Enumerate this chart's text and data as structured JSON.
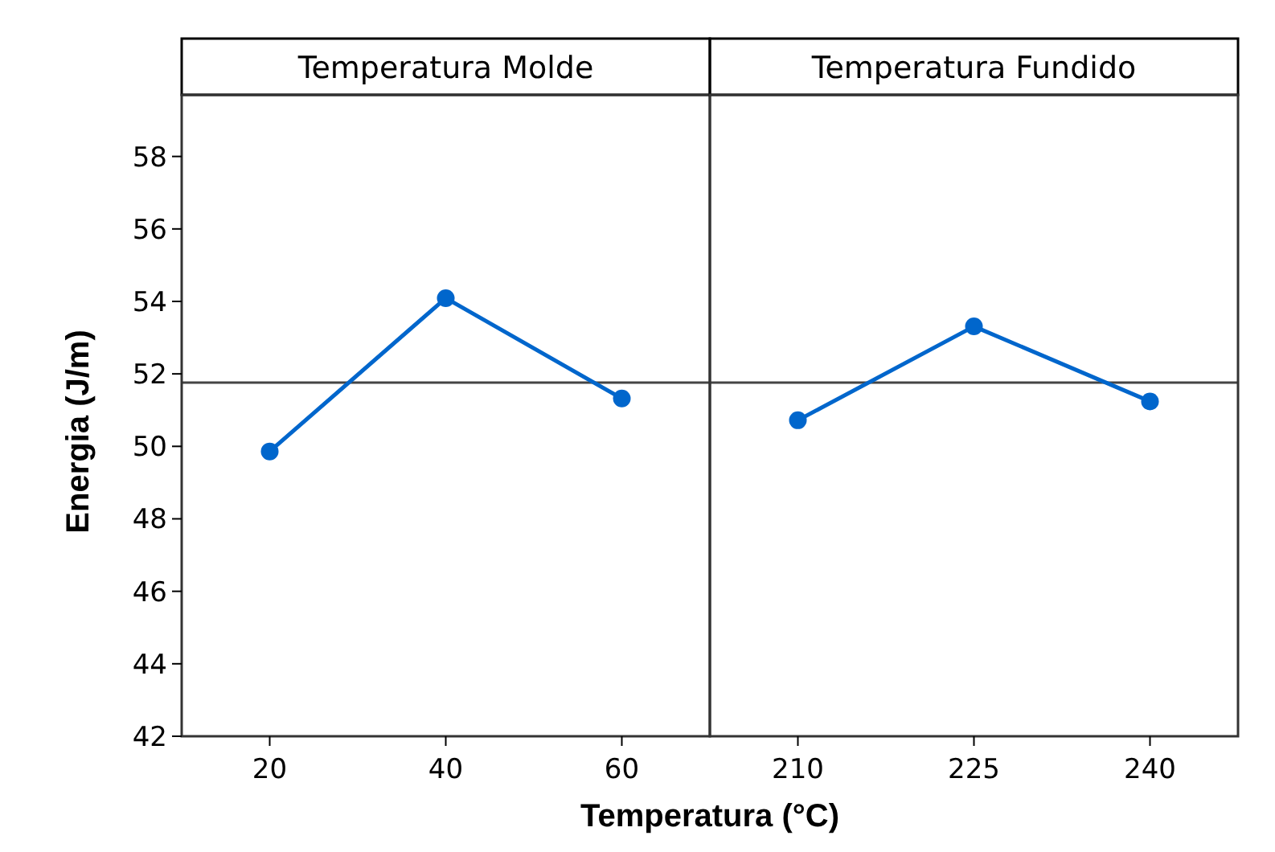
{
  "chart_data": [
    {
      "type": "line",
      "title": "Temperatura Molde",
      "ylabel": "Energia (J/m)",
      "xlabel": "Temperatura (°C)",
      "categories": [
        "20",
        "40",
        "60"
      ],
      "series": [
        {
          "color": "#0066cc",
          "values": [
            49.86,
            54.09,
            51.32
          ]
        }
      ],
      "ylim": [
        42,
        59.7
      ],
      "yticks": [
        42,
        44,
        46,
        48,
        50,
        52,
        54,
        56,
        58
      ],
      "ref_lines": [
        {
          "axis": "y",
          "value": 51.76
        }
      ],
      "marker": "circle",
      "line_style": "solid"
    },
    {
      "type": "line",
      "title": "Temperatura Fundido",
      "categories": [
        "210",
        "225",
        "240"
      ],
      "series": [
        {
          "color": "#0066cc",
          "values": [
            50.72,
            53.31,
            51.24
          ]
        }
      ],
      "ylim": [
        42,
        59.7
      ],
      "ref_lines": [
        {
          "axis": "y",
          "value": 51.76
        }
      ],
      "marker": "circle",
      "line_style": "solid",
      "tick_labels": "x"
    }
  ]
}
